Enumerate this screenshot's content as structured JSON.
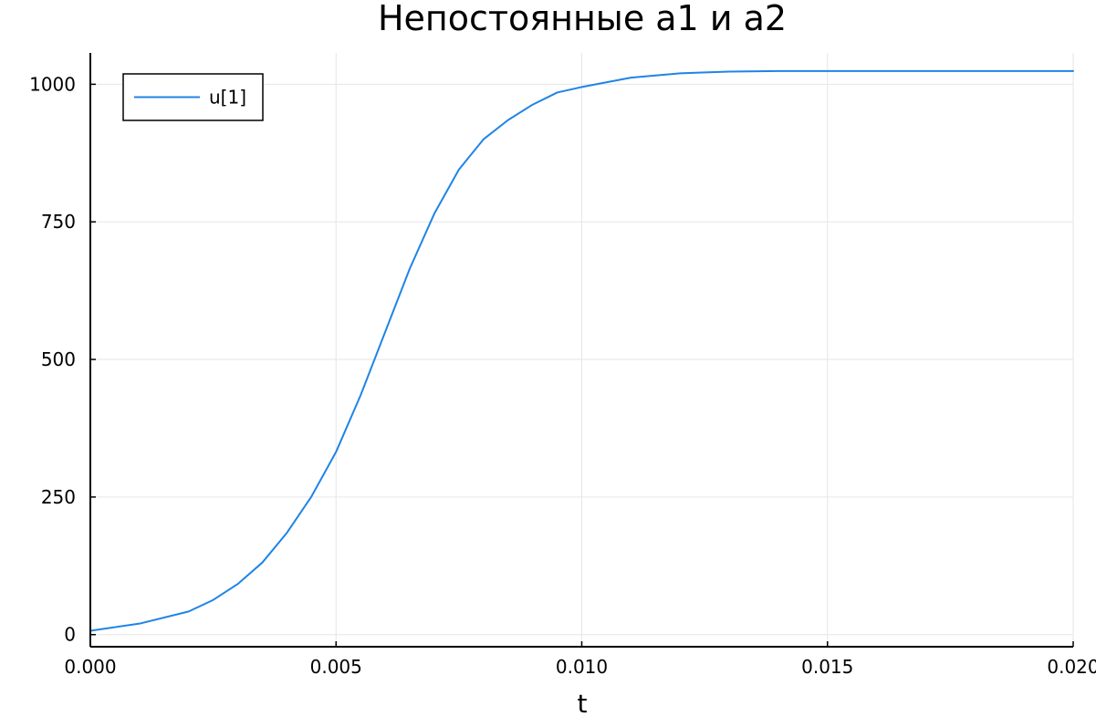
{
  "chart_data": {
    "type": "line",
    "title": "Непостоянные a1 и a2",
    "xlabel": "t",
    "ylabel": "",
    "xlim": [
      0.0,
      0.02
    ],
    "ylim": [
      -22,
      1057
    ],
    "xticks": [
      0.0,
      0.005,
      0.01,
      0.015,
      0.02
    ],
    "xtick_labels": [
      "0.000",
      "0.005",
      "0.010",
      "0.015",
      "0.020"
    ],
    "yticks": [
      0,
      250,
      500,
      750,
      1000
    ],
    "ytick_labels": [
      "0",
      "250",
      "500",
      "750",
      "1000"
    ],
    "grid": true,
    "legend_position": "top-left",
    "series": [
      {
        "name": "u[1]",
        "color": "#1f84e6",
        "x": [
          0.0,
          0.001,
          0.002,
          0.0025,
          0.003,
          0.0035,
          0.004,
          0.0045,
          0.005,
          0.0055,
          0.006,
          0.0065,
          0.007,
          0.0075,
          0.008,
          0.0085,
          0.009,
          0.0095,
          0.01,
          0.011,
          0.012,
          0.013,
          0.014,
          0.015,
          0.016,
          0.018,
          0.02
        ],
        "y": [
          7,
          20,
          42,
          63,
          92,
          131,
          185,
          251,
          332,
          435,
          550,
          665,
          765,
          845,
          900,
          935,
          963,
          985,
          995,
          1012,
          1020,
          1023,
          1024,
          1024,
          1024,
          1024,
          1024
        ]
      }
    ]
  }
}
